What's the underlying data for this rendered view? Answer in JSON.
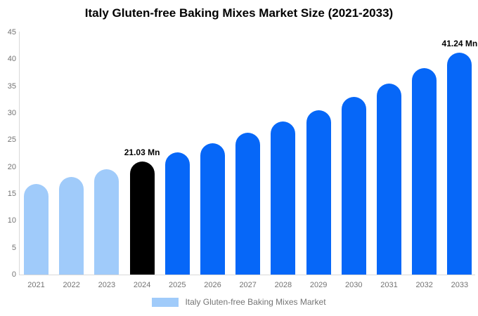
{
  "title": "Italy Gluten-free Baking Mixes Market Size (2021-2033)",
  "chart_data": {
    "type": "bar",
    "title": "Italy Gluten-free Baking Mixes Market Size (2021-2033)",
    "unit": "Mn",
    "categories": [
      "2021",
      "2022",
      "2023",
      "2024",
      "2025",
      "2026",
      "2027",
      "2028",
      "2029",
      "2030",
      "2031",
      "2032",
      "2033"
    ],
    "series": [
      {
        "name": "Italy Gluten-free Baking Mixes Market",
        "values": [
          16.8,
          18.1,
          19.51,
          21.03,
          22.66,
          24.42,
          26.32,
          28.37,
          30.57,
          32.95,
          35.51,
          38.27,
          41.24
        ]
      }
    ],
    "bar_colors": [
      "#a0cbfa",
      "#a0cbfa",
      "#a0cbfa",
      "#000000",
      "#0667f8",
      "#0667f8",
      "#0667f8",
      "#0667f8",
      "#0667f8",
      "#0667f8",
      "#0667f8",
      "#0667f8",
      "#0667f8"
    ],
    "data_labels": [
      {
        "category": "2024",
        "text": "21.03 Mn"
      },
      {
        "category": "2033",
        "text": "41.24 Mn"
      }
    ],
    "ylim": [
      0,
      45
    ],
    "yticks": [
      0,
      5,
      10,
      15,
      20,
      25,
      30,
      35,
      40,
      45
    ],
    "grid": false,
    "legend_position": "bottom",
    "axis_color": "#d9d9d9",
    "tick_label_color": "#737373"
  },
  "legend": {
    "label": "Italy Gluten-free Baking Mixes Market",
    "swatch_color": "#a0cbfa"
  }
}
